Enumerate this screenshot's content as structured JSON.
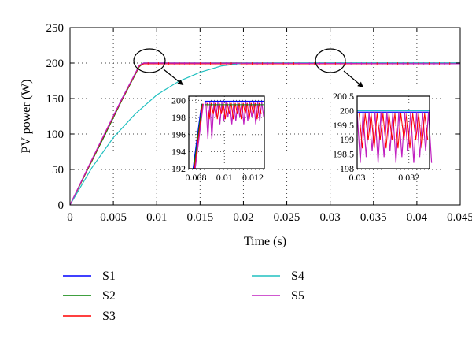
{
  "chart_data": [
    {
      "type": "line",
      "role": "main",
      "xlabel": "Time (s)",
      "ylabel": "PV power (W)",
      "xlim": [
        0,
        0.045
      ],
      "ylim": [
        0,
        250
      ],
      "xticks": [
        "0",
        "0.005",
        "0.01",
        "0.015",
        "0.02",
        "0.025",
        "0.03",
        "0.035",
        "0.04",
        "0.045"
      ],
      "yticks": [
        "0",
        "50",
        "100",
        "150",
        "200",
        "250"
      ],
      "grid": "dotted",
      "legend_position": "below",
      "series": [
        {
          "name": "S1",
          "color": "#0000ff",
          "x": [
            0,
            0.002,
            0.004,
            0.006,
            0.008,
            0.0085,
            0.045
          ],
          "y": [
            0,
            50,
            100,
            150,
            196,
            200,
            200
          ]
        },
        {
          "name": "S2",
          "color": "#008000",
          "x": [
            0,
            0.002,
            0.004,
            0.006,
            0.008,
            0.0085,
            0.045
          ],
          "y": [
            0,
            49,
            98,
            148,
            195,
            200,
            200
          ]
        },
        {
          "name": "S3",
          "color": "#ff0000",
          "x": [
            0,
            0.002,
            0.004,
            0.006,
            0.008,
            0.0085,
            0.045
          ],
          "y": [
            0,
            50,
            100,
            149,
            196,
            199,
            199
          ]
        },
        {
          "name": "S4",
          "color": "#20c0c0",
          "x": [
            0,
            0.0025,
            0.005,
            0.0075,
            0.01,
            0.0125,
            0.015,
            0.0175,
            0.02,
            0.045
          ],
          "y": [
            0,
            52,
            95,
            128,
            155,
            174,
            187,
            196,
            200,
            200
          ]
        },
        {
          "name": "S5",
          "color": "#c020c0",
          "x": [
            0,
            0.002,
            0.004,
            0.006,
            0.008,
            0.0085,
            0.045
          ],
          "y": [
            0,
            51,
            101,
            150,
            197,
            200,
            199
          ]
        }
      ]
    },
    {
      "type": "line",
      "role": "inset",
      "xlim": [
        0.0075,
        0.0128
      ],
      "ylim": [
        192,
        200.5
      ],
      "xticks": [
        "0.008",
        "0.01",
        "0.012"
      ],
      "yticks": [
        "192",
        "194",
        "196",
        "198",
        "200"
      ],
      "grid": "dotted"
    },
    {
      "type": "line",
      "role": "inset",
      "xlim": [
        0.03,
        0.0328
      ],
      "ylim": [
        198,
        200.5
      ],
      "xticks": [
        "0.03",
        "0.032"
      ],
      "yticks": [
        "198",
        "198.5",
        "199",
        "199.5",
        "200",
        "200.5"
      ],
      "grid": "dotted"
    }
  ]
}
